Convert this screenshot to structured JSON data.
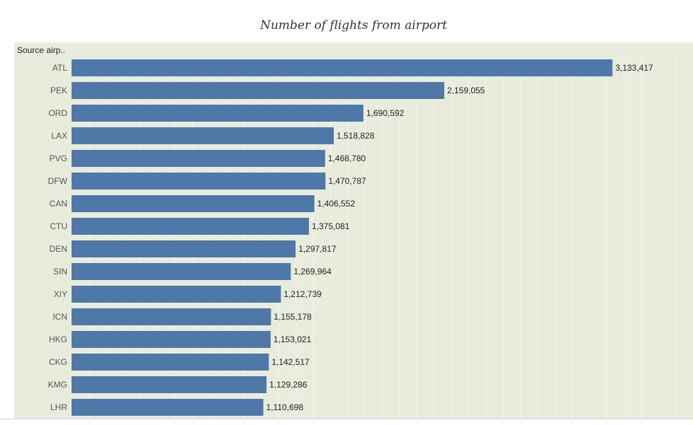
{
  "chart_data": {
    "type": "bar",
    "orientation": "horizontal",
    "title": "Number of flights from airport",
    "header_label": "Source airp..",
    "categories": [
      "ATL",
      "PEK",
      "ORD",
      "LAX",
      "PVG",
      "DFW",
      "CAN",
      "CTU",
      "DEN",
      "SIN",
      "XIY",
      "ICN",
      "HKG",
      "CKG",
      "KMG",
      "LHR"
    ],
    "values": [
      3133417,
      2159055,
      1690592,
      1518828,
      1468780,
      1470787,
      1406552,
      1375081,
      1297817,
      1269964,
      1212739,
      1155178,
      1153021,
      1142517,
      1129286,
      1110698
    ],
    "value_labels": [
      "3,133,417",
      "2,159,055",
      "1,690,592",
      "1,518,828",
      "1,468,780",
      "1,470,787",
      "1,406,552",
      "1,375,081",
      "1,297,817",
      "1,269,964",
      "1,212,739",
      "1,155,178",
      "1,153,021",
      "1,142,517",
      "1,129,286",
      "1,110,698"
    ],
    "xlim": [
      0,
      3600000
    ],
    "bar_color": "#4e78a7",
    "background_color": "#e8ecdc",
    "grid": true
  }
}
